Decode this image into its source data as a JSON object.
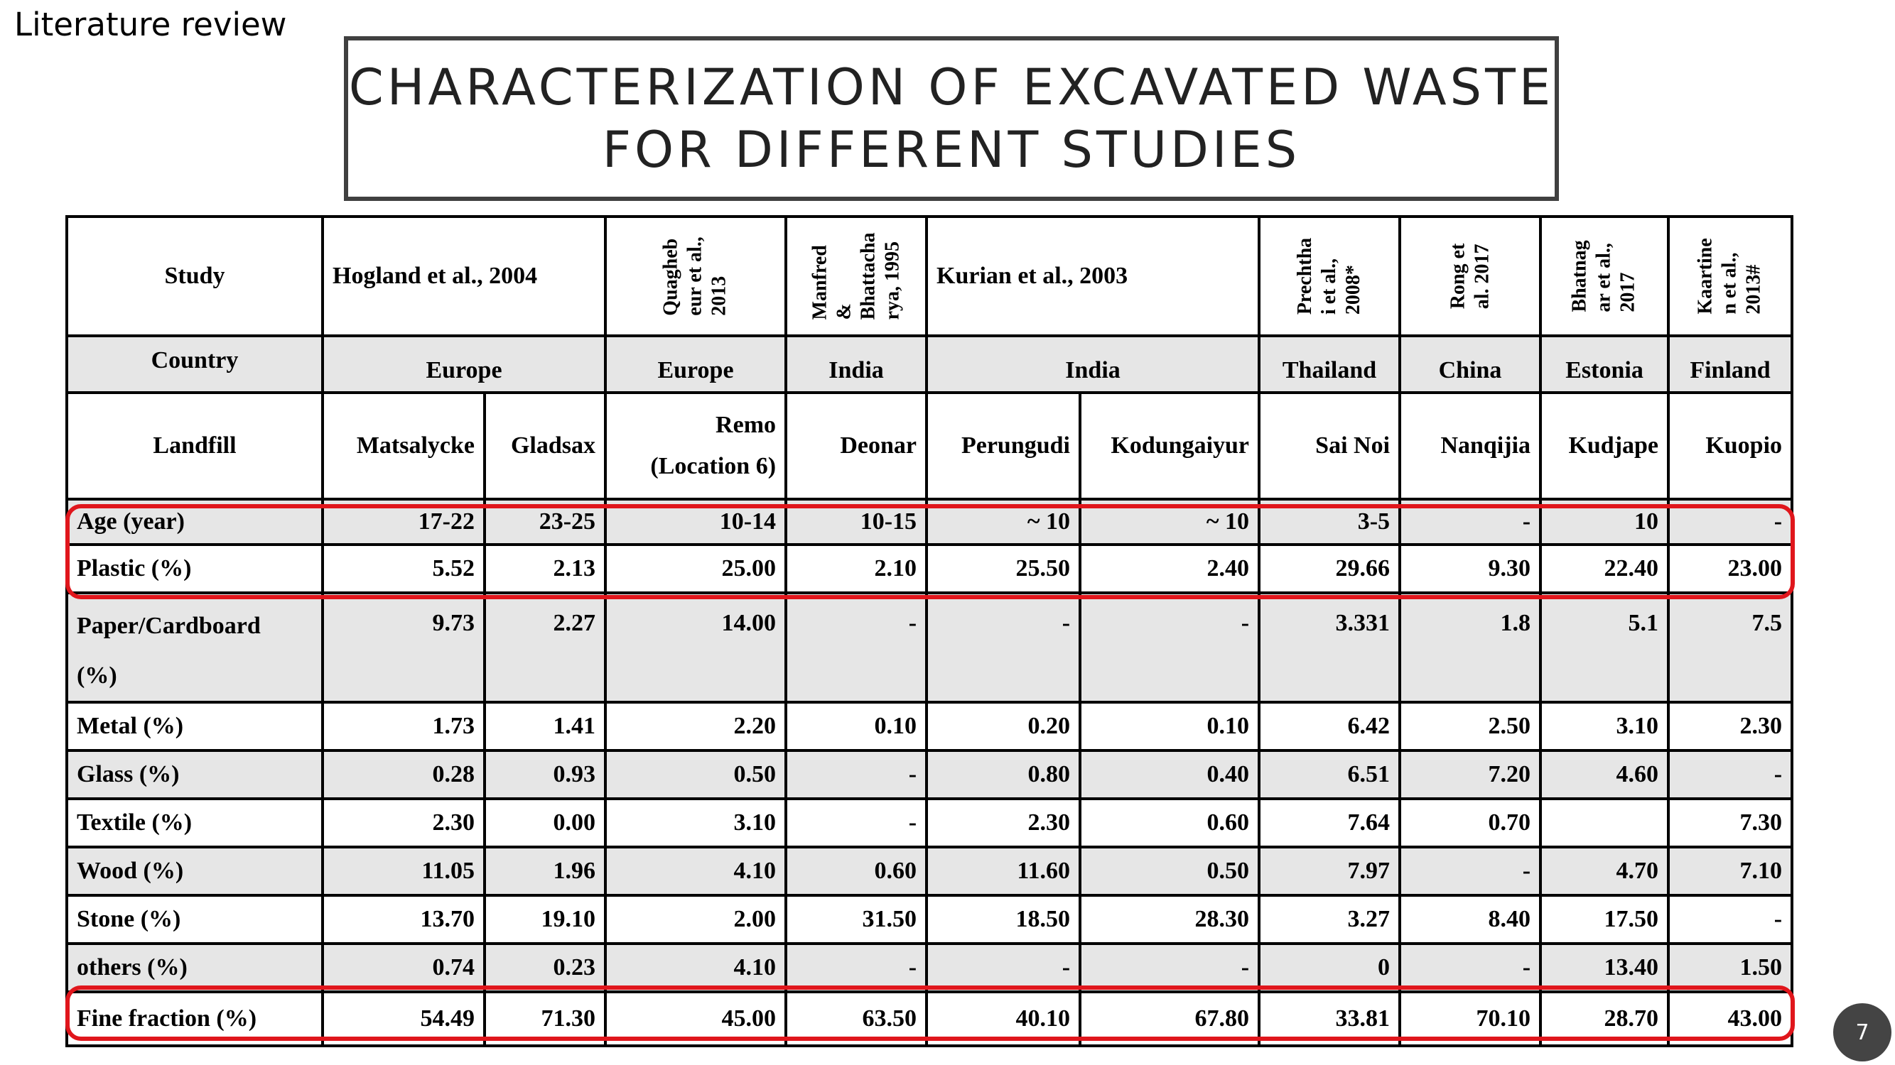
{
  "header": {
    "section_label": "Literature review",
    "title_line1": "CHARACTERIZATION OF EXCAVATED WASTE",
    "title_line2": "FOR DIFFERENT STUDIES"
  },
  "table": {
    "row_labels": {
      "study": "Study",
      "country": "Country",
      "landfill": "Landfill"
    },
    "studies": {
      "hogland": "Hogland et al., 2004",
      "quaghebeur_l1": "Quagheb",
      "quaghebeur_l2": "eur et al.,",
      "quaghebeur_l3": "2013",
      "manfred_l1": "Manfred",
      "manfred_l2": "&",
      "manfred_l3": "Bhattacha",
      "manfred_l4": "rya, 1995",
      "kurian": "Kurian et al., 2003",
      "prechtha_l1": "Prechtha",
      "prechtha_l2": "i et al.,",
      "prechtha_l3": "2008*",
      "rong_l1": "Rong et",
      "rong_l2": "al.  2017",
      "bhatnagar_l1": "Bhatnag",
      "bhatnagar_l2": "ar et al.,",
      "bhatnagar_l3": "2017",
      "kaartinen_l1": "Kaartine",
      "kaartinen_l2": "n et al.,",
      "kaartinen_l3": "2013#"
    },
    "countries": {
      "c1": "Europe",
      "c2": "Europe",
      "c3": "India",
      "c4": "India",
      "c5": "Thailand",
      "c6": "China",
      "c7": "Estonia",
      "c8": "Finland"
    },
    "landfills": {
      "l1": "Matsalycke",
      "l2": "Gladsax",
      "l3a": "Remo",
      "l3b": "(Location 6)",
      "l4": "Deonar",
      "l5": "Perungudi",
      "l6": "Kodungaiyur",
      "l7": "Sai Noi",
      "l8": "Nanqijia",
      "l9": "Kudjape",
      "l10": "Kuopio"
    },
    "rows": [
      {
        "label": "Age (year)",
        "values": [
          "17-22",
          "23-25",
          "10-14",
          "10-15",
          "~ 10",
          "~ 10",
          "3-5",
          "-",
          "10",
          "-"
        ]
      },
      {
        "label": "Plastic (%)",
        "values": [
          "5.52",
          "2.13",
          "25.00",
          "2.10",
          "25.50",
          "2.40",
          "29.66",
          "9.30",
          "22.40",
          "23.00"
        ]
      },
      {
        "label_l1": "Paper/Cardboard",
        "label_l2": "(%)",
        "values": [
          "9.73",
          "2.27",
          "14.00",
          "-",
          "-",
          "-",
          "3.331",
          "1.8",
          "5.1",
          "7.5"
        ]
      },
      {
        "label": "Metal (%)",
        "values": [
          "1.73",
          "1.41",
          "2.20",
          "0.10",
          "0.20",
          "0.10",
          "6.42",
          "2.50",
          "3.10",
          "2.30"
        ]
      },
      {
        "label": "Glass (%)",
        "values": [
          "0.28",
          "0.93",
          "0.50",
          "-",
          "0.80",
          "0.40",
          "6.51",
          "7.20",
          "4.60",
          "-"
        ]
      },
      {
        "label": "Textile (%)",
        "values": [
          "2.30",
          "0.00",
          "3.10",
          "-",
          "2.30",
          "0.60",
          "7.64",
          "0.70",
          "",
          "7.30"
        ]
      },
      {
        "label": "Wood (%)",
        "values": [
          "11.05",
          "1.96",
          "4.10",
          "0.60",
          "11.60",
          "0.50",
          "7.97",
          "-",
          "4.70",
          "7.10"
        ]
      },
      {
        "label": "Stone (%)",
        "values": [
          "13.70",
          "19.10",
          "2.00",
          "31.50",
          "18.50",
          "28.30",
          "3.27",
          "8.40",
          "17.50",
          "-"
        ]
      },
      {
        "label": "others (%)",
        "values": [
          "0.74",
          "0.23",
          "4.10",
          "-",
          "-",
          "-",
          "0",
          "-",
          "13.40",
          "1.50"
        ]
      },
      {
        "label": "Fine fraction (%)",
        "values": [
          "54.49",
          "71.30",
          "45.00",
          "63.50",
          "40.10",
          "67.80",
          "33.81",
          "70.10",
          "28.70",
          "43.00"
        ]
      }
    ]
  },
  "highlight_color": "#e0161c",
  "page_number": "7"
}
